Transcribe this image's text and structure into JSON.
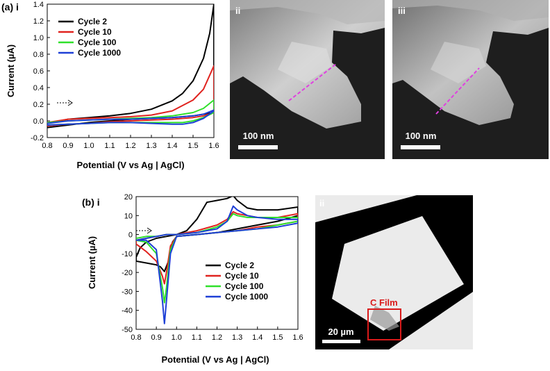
{
  "figure": {
    "panel_a_label": "(a) i",
    "panel_b_label": "(b) i",
    "micrographs": [
      {
        "label": "ii",
        "scalebar": "100 nm"
      },
      {
        "label": "iii",
        "scalebar": "100 nm"
      },
      {
        "label": "ii",
        "scalebar": "20 µm",
        "annotation": "C Film"
      }
    ]
  },
  "colors": {
    "Cycle 2": "#000000",
    "Cycle 10": "#e0231f",
    "Cycle 100": "#2fe02a",
    "Cycle 1000": "#1d3fd6",
    "guide_line": "#e040e0",
    "annotation_box": "#d91a1a"
  },
  "chart_data": [
    {
      "type": "line",
      "title": "",
      "xlabel": "Potential (V vs Ag | AgCl)",
      "ylabel": "Current (µA)",
      "xlim": [
        0.8,
        1.6
      ],
      "ylim": [
        -0.2,
        1.4
      ],
      "xticks": [
        "0.8",
        "0.9",
        "1.0",
        "1.1",
        "1.2",
        "1.3",
        "1.4",
        "1.5",
        "1.6"
      ],
      "yticks": [
        "-0.2",
        "0.0",
        "0.2",
        "0.4",
        "0.6",
        "0.8",
        "1.0",
        "1.2",
        "1.4"
      ],
      "legend_position": "top-left",
      "scan_direction_marker": "dashed arrow pointing right",
      "series": [
        {
          "name": "Cycle 2",
          "forward": [
            [
              0.8,
              -0.03
            ],
            [
              0.9,
              0.02
            ],
            [
              1.0,
              0.04
            ],
            [
              1.1,
              0.06
            ],
            [
              1.2,
              0.09
            ],
            [
              1.3,
              0.14
            ],
            [
              1.4,
              0.24
            ],
            [
              1.45,
              0.33
            ],
            [
              1.5,
              0.48
            ],
            [
              1.55,
              0.75
            ],
            [
              1.58,
              1.05
            ],
            [
              1.6,
              1.4
            ]
          ],
          "reverse": [
            [
              1.6,
              0.1
            ],
            [
              1.55,
              0.08
            ],
            [
              1.5,
              0.06
            ],
            [
              1.4,
              0.04
            ],
            [
              1.3,
              0.03
            ],
            [
              1.2,
              0.02
            ],
            [
              1.1,
              0.0
            ],
            [
              1.0,
              -0.02
            ],
            [
              0.9,
              -0.05
            ],
            [
              0.8,
              -0.08
            ]
          ]
        },
        {
          "name": "Cycle 10",
          "forward": [
            [
              0.8,
              -0.02
            ],
            [
              0.9,
              0.02
            ],
            [
              1.0,
              0.03
            ],
            [
              1.1,
              0.04
            ],
            [
              1.2,
              0.05
            ],
            [
              1.3,
              0.07
            ],
            [
              1.4,
              0.12
            ],
            [
              1.5,
              0.25
            ],
            [
              1.55,
              0.38
            ],
            [
              1.6,
              0.66
            ]
          ],
          "reverse": [
            [
              1.6,
              0.1
            ],
            [
              1.55,
              0.06
            ],
            [
              1.5,
              0.04
            ],
            [
              1.4,
              0.02
            ],
            [
              1.3,
              0.01
            ],
            [
              1.2,
              0.0
            ],
            [
              1.1,
              -0.01
            ],
            [
              1.0,
              -0.03
            ],
            [
              0.9,
              -0.04
            ],
            [
              0.8,
              -0.06
            ]
          ]
        },
        {
          "name": "Cycle 100",
          "forward": [
            [
              0.8,
              -0.02
            ],
            [
              0.9,
              0.0
            ],
            [
              1.0,
              0.01
            ],
            [
              1.1,
              0.02
            ],
            [
              1.2,
              0.03
            ],
            [
              1.3,
              0.04
            ],
            [
              1.4,
              0.06
            ],
            [
              1.5,
              0.1
            ],
            [
              1.55,
              0.15
            ],
            [
              1.6,
              0.25
            ]
          ],
          "reverse": [
            [
              1.6,
              0.1
            ],
            [
              1.55,
              0.04
            ],
            [
              1.5,
              0.0
            ],
            [
              1.45,
              -0.02
            ],
            [
              1.4,
              -0.02
            ],
            [
              1.3,
              -0.02
            ],
            [
              1.2,
              -0.02
            ],
            [
              1.1,
              -0.02
            ],
            [
              1.0,
              -0.03
            ],
            [
              0.9,
              -0.04
            ],
            [
              0.8,
              -0.05
            ]
          ]
        },
        {
          "name": "Cycle 1000",
          "forward": [
            [
              0.8,
              -0.03
            ],
            [
              0.9,
              0.0
            ],
            [
              1.0,
              0.01
            ],
            [
              1.1,
              0.02
            ],
            [
              1.2,
              0.02
            ],
            [
              1.3,
              0.03
            ],
            [
              1.4,
              0.04
            ],
            [
              1.5,
              0.06
            ],
            [
              1.55,
              0.08
            ],
            [
              1.6,
              0.13
            ]
          ],
          "reverse": [
            [
              1.6,
              0.12
            ],
            [
              1.55,
              0.03
            ],
            [
              1.5,
              -0.02
            ],
            [
              1.45,
              -0.04
            ],
            [
              1.4,
              -0.04
            ],
            [
              1.3,
              -0.03
            ],
            [
              1.2,
              -0.02
            ],
            [
              1.1,
              -0.02
            ],
            [
              1.0,
              -0.03
            ],
            [
              0.9,
              -0.04
            ],
            [
              0.8,
              -0.05
            ]
          ]
        }
      ]
    },
    {
      "type": "line",
      "title": "",
      "xlabel": "Potential (V vs Ag | AgCl)",
      "ylabel": "Current (µA)",
      "xlim": [
        0.8,
        1.6
      ],
      "ylim": [
        -50,
        20
      ],
      "xticks": [
        "0.8",
        "0.9",
        "1.0",
        "1.1",
        "1.2",
        "1.3",
        "1.4",
        "1.5",
        "1.6"
      ],
      "yticks": [
        "20",
        "10",
        "0",
        "-10",
        "-20",
        "-30",
        "-40",
        "-50"
      ],
      "legend_position": "bottom-center",
      "scan_direction_marker": "dashed arrow pointing right",
      "series": [
        {
          "name": "Cycle 2",
          "forward": [
            [
              0.8,
              -12
            ],
            [
              0.82,
              -7
            ],
            [
              0.85,
              -4
            ],
            [
              0.9,
              -2
            ],
            [
              0.95,
              -1
            ],
            [
              1.0,
              0
            ],
            [
              1.05,
              2
            ],
            [
              1.1,
              8
            ],
            [
              1.15,
              17
            ],
            [
              1.2,
              18
            ],
            [
              1.25,
              19
            ],
            [
              1.28,
              20.5
            ],
            [
              1.3,
              18
            ],
            [
              1.35,
              14
            ],
            [
              1.4,
              13
            ],
            [
              1.5,
              13
            ],
            [
              1.6,
              14.5
            ]
          ],
          "reverse": [
            [
              1.6,
              10
            ],
            [
              1.5,
              7
            ],
            [
              1.4,
              5
            ],
            [
              1.3,
              3
            ],
            [
              1.2,
              1
            ],
            [
              1.1,
              0
            ],
            [
              1.0,
              -1
            ],
            [
              0.98,
              -4
            ],
            [
              0.96,
              -14
            ],
            [
              0.94,
              -19.5
            ],
            [
              0.92,
              -17
            ],
            [
              0.9,
              -16
            ],
            [
              0.85,
              -15
            ],
            [
              0.8,
              -14
            ]
          ]
        },
        {
          "name": "Cycle 10",
          "forward": [
            [
              0.8,
              -3
            ],
            [
              0.85,
              -2
            ],
            [
              0.9,
              -1
            ],
            [
              0.95,
              0
            ],
            [
              1.0,
              0
            ],
            [
              1.1,
              2
            ],
            [
              1.2,
              5
            ],
            [
              1.25,
              8
            ],
            [
              1.28,
              12
            ],
            [
              1.3,
              11
            ],
            [
              1.35,
              10
            ],
            [
              1.4,
              9
            ],
            [
              1.5,
              9
            ],
            [
              1.6,
              11
            ]
          ],
          "reverse": [
            [
              1.6,
              7
            ],
            [
              1.5,
              5
            ],
            [
              1.4,
              4
            ],
            [
              1.3,
              2
            ],
            [
              1.2,
              1
            ],
            [
              1.1,
              0
            ],
            [
              1.0,
              -1
            ],
            [
              0.97,
              -6
            ],
            [
              0.95,
              -20
            ],
            [
              0.94,
              -26
            ],
            [
              0.93,
              -22
            ],
            [
              0.9,
              -14
            ],
            [
              0.85,
              -9
            ],
            [
              0.8,
              -5
            ]
          ]
        },
        {
          "name": "Cycle 100",
          "forward": [
            [
              0.8,
              -2
            ],
            [
              0.85,
              -1
            ],
            [
              0.9,
              -1
            ],
            [
              0.95,
              0
            ],
            [
              1.0,
              0
            ],
            [
              1.1,
              1
            ],
            [
              1.2,
              4
            ],
            [
              1.25,
              7
            ],
            [
              1.28,
              11
            ],
            [
              1.3,
              10
            ],
            [
              1.35,
              9
            ],
            [
              1.4,
              9
            ],
            [
              1.5,
              9
            ],
            [
              1.6,
              9
            ]
          ],
          "reverse": [
            [
              1.6,
              7
            ],
            [
              1.5,
              5
            ],
            [
              1.4,
              3
            ],
            [
              1.3,
              2
            ],
            [
              1.2,
              1
            ],
            [
              1.1,
              0
            ],
            [
              1.0,
              -1
            ],
            [
              0.97,
              -8
            ],
            [
              0.95,
              -28
            ],
            [
              0.94,
              -36
            ],
            [
              0.93,
              -28
            ],
            [
              0.9,
              -10
            ],
            [
              0.85,
              -4
            ],
            [
              0.8,
              -3
            ]
          ]
        },
        {
          "name": "Cycle 1000",
          "forward": [
            [
              0.8,
              -3
            ],
            [
              0.85,
              -2
            ],
            [
              0.9,
              -1
            ],
            [
              0.95,
              0
            ],
            [
              1.0,
              0
            ],
            [
              1.1,
              1
            ],
            [
              1.2,
              3
            ],
            [
              1.25,
              7
            ],
            [
              1.28,
              15
            ],
            [
              1.3,
              13
            ],
            [
              1.35,
              10
            ],
            [
              1.4,
              9
            ],
            [
              1.5,
              8
            ],
            [
              1.6,
              8
            ]
          ],
          "reverse": [
            [
              1.6,
              6
            ],
            [
              1.5,
              4
            ],
            [
              1.4,
              3
            ],
            [
              1.3,
              2
            ],
            [
              1.2,
              1
            ],
            [
              1.1,
              0
            ],
            [
              1.0,
              -1
            ],
            [
              0.97,
              -10
            ],
            [
              0.95,
              -35
            ],
            [
              0.94,
              -47
            ],
            [
              0.93,
              -35
            ],
            [
              0.9,
              -8
            ],
            [
              0.85,
              -3
            ],
            [
              0.8,
              -3
            ]
          ]
        }
      ]
    }
  ]
}
